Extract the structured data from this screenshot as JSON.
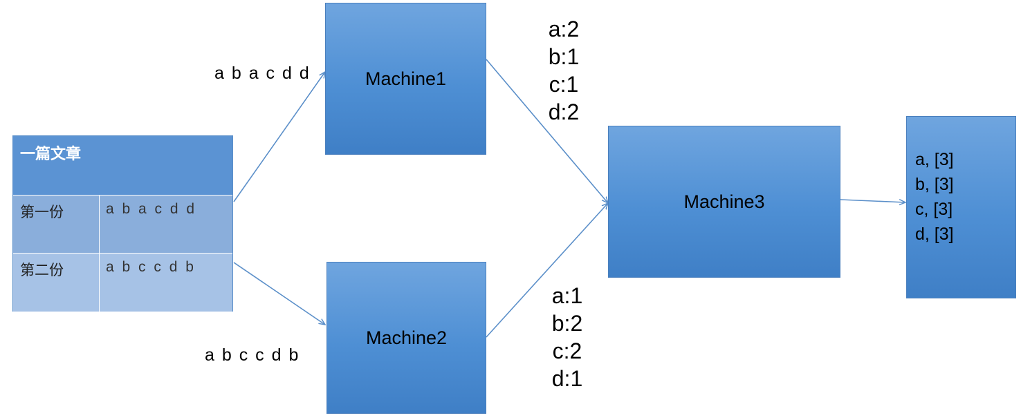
{
  "document": {
    "title": "一篇文章",
    "rows": [
      {
        "name": "第一份",
        "text": "a b a c d d"
      },
      {
        "name": "第二份",
        "text": "a b c c d b"
      }
    ]
  },
  "inputs": {
    "to_machine1": "a b a c d d",
    "to_machine2": "a b c c d b"
  },
  "machines": {
    "m1": "Machine1",
    "m2": "Machine2",
    "m3": "Machine3"
  },
  "machine1_counts": [
    "a:2",
    "b:1",
    "c:1",
    "d:2"
  ],
  "machine2_counts": [
    "a:1",
    "b:2",
    "c:2",
    "d:1"
  ],
  "result": [
    "a, [3]",
    "b, [3]",
    "c, [3]",
    "d, [3]"
  ],
  "colors": {
    "box_top": "#6fa5df",
    "box_bottom": "#3f7fc6",
    "arrow": "#5b8fc9"
  }
}
